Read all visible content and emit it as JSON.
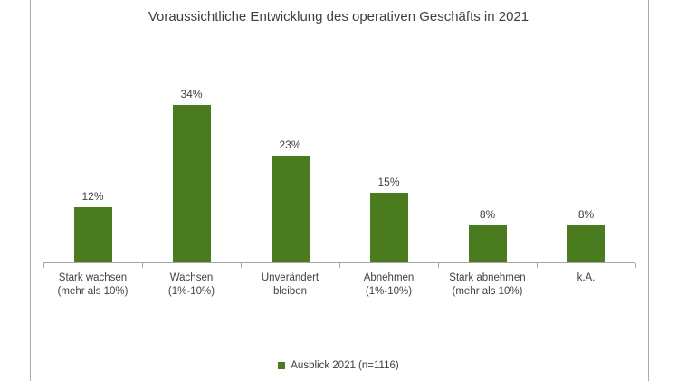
{
  "chart_data": {
    "type": "bar",
    "title": "Voraussichtliche Entwicklung des operativen Geschäfts in 2021",
    "categories": [
      [
        "Stark wachsen",
        "(mehr als 10%)"
      ],
      [
        "Wachsen",
        "(1%-10%)"
      ],
      [
        "Unverändert",
        "bleiben"
      ],
      [
        "Abnehmen",
        "(1%-10%)"
      ],
      [
        "Stark abnehmen",
        "(mehr als 10%)"
      ],
      [
        "k.A."
      ]
    ],
    "values": [
      12,
      34,
      23,
      15,
      8,
      8
    ],
    "value_labels": [
      "12%",
      "34%",
      "23%",
      "15%",
      "8%",
      "8%"
    ],
    "ylabel": "",
    "xlabel": "",
    "ylim": [
      0,
      40
    ],
    "grid": false,
    "legend": {
      "label": "Ausblick 2021 (n=1116)",
      "position": "bottom-center"
    },
    "colors": {
      "bar": "#4a7c1f",
      "axis": "#a6a6a6",
      "text": "#404040",
      "frame_border": "#ababab"
    }
  }
}
